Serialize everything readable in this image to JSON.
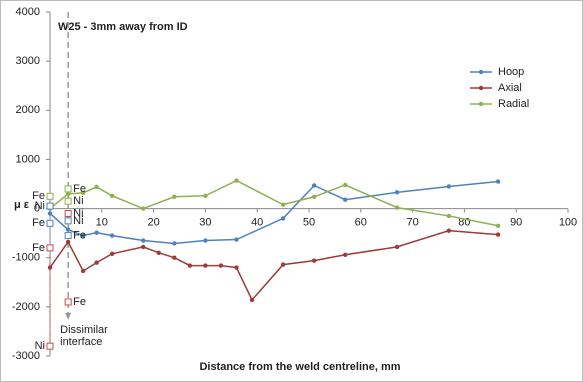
{
  "chart_data": {
    "type": "line",
    "title": "W25 - 3mm away from ID",
    "x_label": "Distance from the weld centreline, mm",
    "y_label": "μ ε",
    "xlim": [
      0,
      100
    ],
    "xticks": [
      10,
      20,
      30,
      40,
      50,
      60,
      70,
      80,
      90,
      100
    ],
    "ylim": [
      -3000,
      4000
    ],
    "yticks": [
      -3000,
      -2000,
      -1000,
      0,
      1000,
      2000,
      3000,
      4000
    ],
    "legend": "right",
    "series": [
      {
        "name": "Hoop",
        "color": "#4f81bd",
        "x": [
          0,
          3.5,
          6.4,
          9,
          12,
          18,
          24,
          30,
          36,
          45,
          51,
          57,
          67,
          77,
          86.5
        ],
        "values": [
          -100,
          -430,
          -550,
          -490,
          -550,
          -650,
          -710,
          -650,
          -630,
          -200,
          470,
          180,
          330,
          450,
          550
        ]
      },
      {
        "name": "Axial",
        "color": "#9c3b37",
        "x": [
          0,
          3.5,
          6.4,
          9,
          12,
          18,
          21,
          24,
          27,
          30,
          33,
          36,
          39,
          45,
          51,
          57,
          67,
          77,
          86.5
        ],
        "values": [
          -1200,
          -680,
          -1270,
          -1100,
          -920,
          -780,
          -900,
          -1000,
          -1160,
          -1160,
          -1160,
          -1200,
          -1860,
          -1140,
          -1060,
          -940,
          -780,
          -450,
          -530
        ]
      },
      {
        "name": "Radial",
        "color": "#8eb050",
        "x": [
          0,
          3.5,
          6.4,
          9,
          12,
          18,
          24,
          30,
          36,
          45,
          51,
          57,
          67,
          77,
          86.5
        ],
        "values": [
          0,
          300,
          320,
          440,
          260,
          0,
          240,
          260,
          570,
          80,
          240,
          480,
          20,
          -150,
          -350
        ]
      }
    ],
    "markers": [
      {
        "label": "Fe",
        "x": 0,
        "y": -800,
        "color": "#c0504d"
      },
      {
        "label": "Ni",
        "x": 0,
        "y": -2800,
        "color": "#c0504d"
      },
      {
        "label": "Ni",
        "x": 3.5,
        "y": -100,
        "color": "#c0504d"
      },
      {
        "label": "Fe",
        "x": 3.5,
        "y": -1900,
        "color": "#c0504d"
      },
      {
        "label": "Fe",
        "x": 0,
        "y": 250,
        "color": "#8eb050"
      },
      {
        "label": "Fe",
        "x": 3.5,
        "y": 400,
        "color": "#8eb050"
      },
      {
        "label": "Ni",
        "x": 3.5,
        "y": 150,
        "color": "#8eb050"
      },
      {
        "label": "Ni",
        "x": 0,
        "y": 50,
        "color": "#4f81bd"
      },
      {
        "label": "Fe",
        "x": 0,
        "y": -300,
        "color": "#4f81bd"
      },
      {
        "label": "Ni",
        "x": 3.5,
        "y": -250,
        "color": "#4f81bd"
      },
      {
        "label": "Fe",
        "x": 3.5,
        "y": -550,
        "color": "#4f81bd"
      }
    ],
    "interface": {
      "x": 3.5,
      "label": [
        "Dissimilar",
        "interface"
      ]
    }
  }
}
